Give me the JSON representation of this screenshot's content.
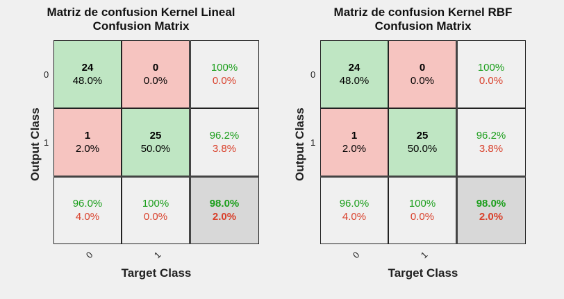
{
  "chart_data": [
    {
      "type": "heatmap",
      "title": "Matriz de confusion Kernel Lineal",
      "subtitle": "Confusion Matrix",
      "xlabel": "Target Class",
      "ylabel": "Output Class",
      "x_ticks": [
        "0",
        "1"
      ],
      "y_ticks": [
        "0",
        "1"
      ],
      "cells": [
        [
          {
            "count": "24",
            "pct": "48.0%"
          },
          {
            "count": "0",
            "pct": "0.0%"
          },
          {
            "good": "100%",
            "bad": "0.0%"
          }
        ],
        [
          {
            "count": "1",
            "pct": "2.0%"
          },
          {
            "count": "25",
            "pct": "50.0%"
          },
          {
            "good": "96.2%",
            "bad": "3.8%"
          }
        ],
        [
          {
            "good": "96.0%",
            "bad": "4.0%"
          },
          {
            "good": "100%",
            "bad": "0.0%"
          },
          {
            "good": "98.0%",
            "bad": "2.0%"
          }
        ]
      ]
    },
    {
      "type": "heatmap",
      "title": "Matriz de confusion Kernel RBF",
      "subtitle": "Confusion Matrix",
      "xlabel": "Target Class",
      "ylabel": "Output Class",
      "x_ticks": [
        "0",
        "1"
      ],
      "y_ticks": [
        "0",
        "1"
      ],
      "cells": [
        [
          {
            "count": "24",
            "pct": "48.0%"
          },
          {
            "count": "0",
            "pct": "0.0%"
          },
          {
            "good": "100%",
            "bad": "0.0%"
          }
        ],
        [
          {
            "count": "1",
            "pct": "2.0%"
          },
          {
            "count": "25",
            "pct": "50.0%"
          },
          {
            "good": "96.2%",
            "bad": "3.8%"
          }
        ],
        [
          {
            "good": "96.0%",
            "bad": "4.0%"
          },
          {
            "good": "100%",
            "bad": "0.0%"
          },
          {
            "good": "98.0%",
            "bad": "2.0%"
          }
        ]
      ]
    }
  ],
  "colors": {
    "correct_cell": "#bfe6c3",
    "incorrect_cell": "#f6c4c0",
    "summary_cell": "#f0f0f0",
    "total_cell": "#d8d8d8",
    "good_text": "#1a9e1a",
    "bad_text": "#d9402b"
  }
}
